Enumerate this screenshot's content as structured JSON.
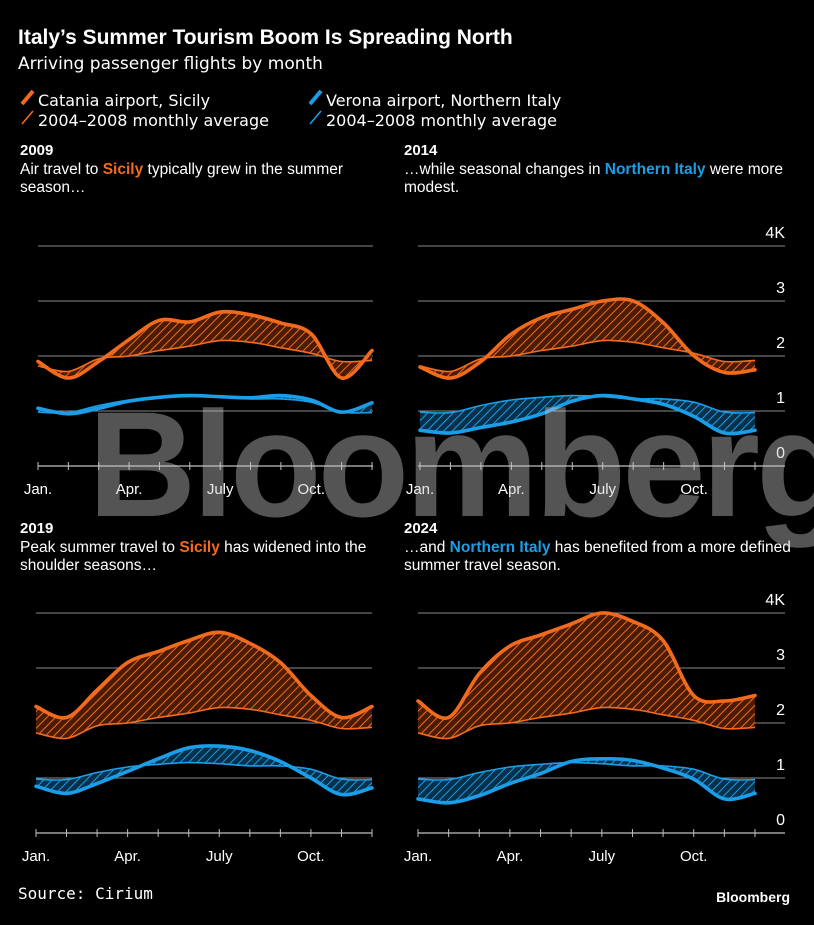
{
  "header": {
    "title": "Italy’s Summer Tourism Boom Is Spreading North",
    "subtitle": "Arriving passenger flights by month"
  },
  "legend": [
    {
      "label": "Catania airport, Sicily",
      "color": "#f26b1d",
      "style": "thick"
    },
    {
      "label": "2004–2008 monthly average",
      "color": "#f26b1d",
      "style": "thin"
    },
    {
      "label": "Verona airport, Northern Italy",
      "color": "#1a9ee8",
      "style": "thick"
    },
    {
      "label": "2004–2008 monthly average",
      "color": "#1a9ee8",
      "style": "thin"
    }
  ],
  "panels": [
    {
      "year": "2009",
      "desc_pre": "Air travel to ",
      "desc_hl": "Sicily",
      "desc_post": " typically grew in the summer season…"
    },
    {
      "year": "2014",
      "desc_pre": "…while seasonal changes in ",
      "desc_hl": "Northern Italy",
      "desc_post": " were more modest."
    },
    {
      "year": "2019",
      "desc_pre": "Peak summer travel to ",
      "desc_hl": "Sicily",
      "desc_post": " has widened into the shoulder seasons…"
    },
    {
      "year": "2024",
      "desc_pre": "…and ",
      "desc_hl": "Northern Italy",
      "desc_post": " has benefited from a more defined summer travel season."
    }
  ],
  "footer": {
    "source": "Source: Cirium",
    "brand": "Bloomberg"
  },
  "watermark": "Bloomberg",
  "chart_data": {
    "type": "line",
    "title": "Arriving passenger flights by month",
    "unit": "thousands of flights",
    "ylim": [
      0,
      4
    ],
    "y_ticks": [
      "0",
      "1",
      "2",
      "3",
      "4K"
    ],
    "x_ticks": [
      "Jan.",
      "Apr.",
      "July",
      "Oct."
    ],
    "colors": {
      "catania": "#f26b1d",
      "verona": "#1a9ee8"
    },
    "baseline": {
      "catania_avg": [
        1.82,
        1.72,
        1.95,
        2.0,
        2.1,
        2.18,
        2.28,
        2.25,
        2.15,
        2.05,
        1.9,
        1.92
      ],
      "verona_avg": [
        0.98,
        0.97,
        1.1,
        1.2,
        1.25,
        1.28,
        1.26,
        1.22,
        1.22,
        1.16,
        0.98,
        0.97
      ]
    },
    "years": [
      {
        "year": "2009",
        "catania": [
          1.9,
          1.6,
          1.9,
          2.3,
          2.65,
          2.62,
          2.8,
          2.75,
          2.6,
          2.4,
          1.6,
          2.1
        ],
        "verona": [
          1.05,
          0.95,
          1.05,
          1.18,
          1.25,
          1.28,
          1.26,
          1.24,
          1.28,
          1.2,
          0.98,
          1.15
        ]
      },
      {
        "year": "2014",
        "catania": [
          1.8,
          1.6,
          1.9,
          2.4,
          2.7,
          2.85,
          3.0,
          3.0,
          2.6,
          2.0,
          1.7,
          1.75
        ],
        "verona": [
          0.65,
          0.6,
          0.7,
          0.8,
          0.95,
          1.18,
          1.28,
          1.22,
          1.12,
          0.9,
          0.6,
          0.65
        ]
      },
      {
        "year": "2019",
        "catania": [
          2.3,
          2.1,
          2.6,
          3.1,
          3.3,
          3.5,
          3.65,
          3.45,
          3.1,
          2.5,
          2.1,
          2.3
        ],
        "verona": [
          0.85,
          0.72,
          0.9,
          1.12,
          1.35,
          1.55,
          1.58,
          1.5,
          1.3,
          1.0,
          0.7,
          0.82
        ]
      },
      {
        "year": "2024",
        "catania": [
          2.4,
          2.1,
          2.9,
          3.4,
          3.6,
          3.8,
          4.0,
          3.85,
          3.5,
          2.5,
          2.4,
          2.5
        ],
        "verona": [
          0.62,
          0.55,
          0.68,
          0.9,
          1.08,
          1.3,
          1.35,
          1.32,
          1.18,
          0.98,
          0.62,
          0.72
        ]
      }
    ]
  }
}
